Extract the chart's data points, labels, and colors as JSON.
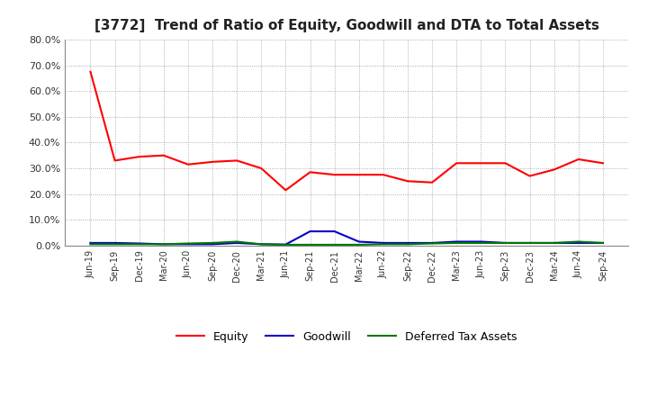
{
  "title": "[3772]  Trend of Ratio of Equity, Goodwill and DTA to Total Assets",
  "x_labels": [
    "Jun-19",
    "Sep-19",
    "Dec-19",
    "Mar-20",
    "Jun-20",
    "Sep-20",
    "Dec-20",
    "Mar-21",
    "Jun-21",
    "Sep-21",
    "Dec-21",
    "Mar-22",
    "Jun-22",
    "Sep-22",
    "Dec-22",
    "Mar-23",
    "Jun-23",
    "Sep-23",
    "Dec-23",
    "Mar-24",
    "Jun-24",
    "Sep-24"
  ],
  "equity": [
    0.675,
    0.33,
    0.345,
    0.35,
    0.315,
    0.325,
    0.33,
    0.3,
    0.215,
    0.285,
    0.275,
    0.275,
    0.275,
    0.25,
    0.245,
    0.32,
    0.32,
    0.32,
    0.27,
    0.295,
    0.335,
    0.32
  ],
  "goodwill": [
    0.01,
    0.01,
    0.008,
    0.005,
    0.005,
    0.005,
    0.01,
    0.005,
    0.004,
    0.055,
    0.055,
    0.015,
    0.01,
    0.01,
    0.01,
    0.015,
    0.015,
    0.01,
    0.01,
    0.01,
    0.01,
    0.01
  ],
  "dta": [
    0.005,
    0.005,
    0.005,
    0.005,
    0.008,
    0.01,
    0.015,
    0.005,
    0.003,
    0.003,
    0.003,
    0.003,
    0.005,
    0.005,
    0.008,
    0.01,
    0.01,
    0.01,
    0.01,
    0.01,
    0.015,
    0.01
  ],
  "equity_color": "#ff0000",
  "goodwill_color": "#0000cc",
  "dta_color": "#007700",
  "background_color": "#ffffff",
  "grid_color": "#999999",
  "ylim": [
    0.0,
    0.8
  ],
  "yticks": [
    0.0,
    0.1,
    0.2,
    0.3,
    0.4,
    0.5,
    0.6,
    0.7,
    0.8
  ],
  "title_fontsize": 11,
  "legend_labels": [
    "Equity",
    "Goodwill",
    "Deferred Tax Assets"
  ]
}
